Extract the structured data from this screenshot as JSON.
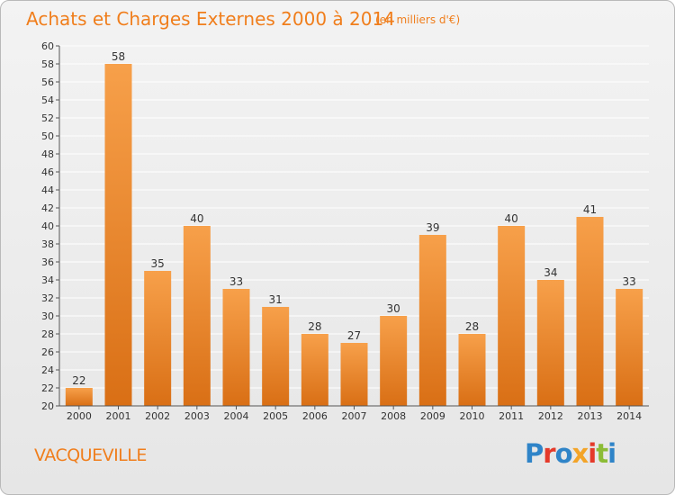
{
  "header": {
    "title": "Achats et Charges Externes 2000 à 2014",
    "subtitle": "(en milliers d'€)"
  },
  "footer": {
    "commune": "VACQUEVILLE",
    "logo": "Proxiti",
    "logo_colors": [
      "#2f84c8",
      "#e53a2a",
      "#2f84c8",
      "#f3a428",
      "#e53a2a",
      "#8cbc36",
      "#2f84c8"
    ]
  },
  "colors": {
    "bar_top": "#f7a04a",
    "bar_bottom": "#d96f15",
    "title": "#f07e1c",
    "grid": "#ffffff",
    "text": "#333333"
  },
  "chart_data": {
    "type": "bar",
    "categories": [
      "2000",
      "2001",
      "2002",
      "2003",
      "2004",
      "2005",
      "2006",
      "2007",
      "2008",
      "2009",
      "2010",
      "2011",
      "2012",
      "2013",
      "2014"
    ],
    "values": [
      22,
      58,
      35,
      40,
      33,
      31,
      28,
      27,
      30,
      39,
      28,
      40,
      34,
      41,
      33
    ],
    "title": "Achats et Charges Externes 2000 à 2014",
    "subtitle": "(en milliers d'€)",
    "ylim": [
      20,
      60
    ],
    "ystep": 2,
    "grid": true,
    "data_labels": true
  }
}
